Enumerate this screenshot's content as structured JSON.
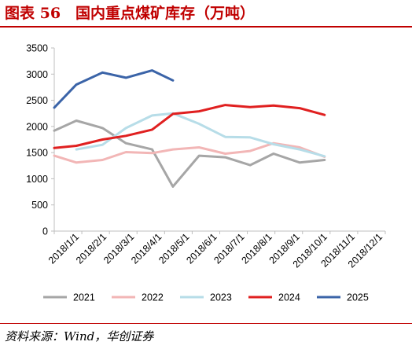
{
  "title": "图表 56　国内重点煤矿库存（万吨）",
  "source": "资料来源：Wind，华创证券",
  "colors": {
    "accent": "#c00000",
    "axis": "#bfbfbf"
  },
  "chart_data": {
    "type": "line",
    "title": "",
    "xlabel": "",
    "ylabel": "",
    "categories": [
      "2018/1/1",
      "2018/2/1",
      "2018/3/1",
      "2018/4/1",
      "2018/5/1",
      "2018/6/1",
      "2018/7/1",
      "2018/8/1",
      "2018/9/1",
      "2018/10/1",
      "2018/11/1",
      "2018/12/1"
    ],
    "ylim": [
      0,
      3500
    ],
    "yticks": [
      0,
      500,
      1000,
      1500,
      2000,
      2500,
      3000,
      3500
    ],
    "grid": false,
    "legend_position": "bottom",
    "series": [
      {
        "name": "2021",
        "color": "#a6a6a6",
        "points": [
          {
            "x": 0.0,
            "y": 1920
          },
          {
            "x": 0.8,
            "y": 2110
          },
          {
            "x": 1.75,
            "y": 1970
          },
          {
            "x": 2.6,
            "y": 1680
          },
          {
            "x": 3.55,
            "y": 1560
          },
          {
            "x": 4.3,
            "y": 850
          },
          {
            "x": 5.25,
            "y": 1440
          },
          {
            "x": 6.2,
            "y": 1410
          },
          {
            "x": 7.1,
            "y": 1260
          },
          {
            "x": 7.95,
            "y": 1480
          },
          {
            "x": 8.9,
            "y": 1310
          },
          {
            "x": 9.8,
            "y": 1360
          }
        ]
      },
      {
        "name": "2022",
        "color": "#f2b6b6",
        "points": [
          {
            "x": 0.0,
            "y": 1440
          },
          {
            "x": 0.8,
            "y": 1310
          },
          {
            "x": 1.75,
            "y": 1360
          },
          {
            "x": 2.6,
            "y": 1510
          },
          {
            "x": 3.55,
            "y": 1490
          },
          {
            "x": 4.3,
            "y": 1560
          },
          {
            "x": 5.25,
            "y": 1600
          },
          {
            "x": 6.2,
            "y": 1480
          },
          {
            "x": 7.1,
            "y": 1530
          },
          {
            "x": 7.95,
            "y": 1680
          },
          {
            "x": 8.9,
            "y": 1600
          },
          {
            "x": 9.8,
            "y": 1420
          }
        ]
      },
      {
        "name": "2023",
        "color": "#b7dde8",
        "points": [
          {
            "x": 0.8,
            "y": 1560
          },
          {
            "x": 1.75,
            "y": 1650
          },
          {
            "x": 2.6,
            "y": 1970
          },
          {
            "x": 3.55,
            "y": 2210
          },
          {
            "x": 4.3,
            "y": 2250
          },
          {
            "x": 5.25,
            "y": 2050
          },
          {
            "x": 6.2,
            "y": 1800
          },
          {
            "x": 7.1,
            "y": 1790
          },
          {
            "x": 7.95,
            "y": 1660
          },
          {
            "x": 8.9,
            "y": 1560
          },
          {
            "x": 9.8,
            "y": 1430
          }
        ]
      },
      {
        "name": "2024",
        "color": "#e02020",
        "points": [
          {
            "x": 0.0,
            "y": 1590
          },
          {
            "x": 0.8,
            "y": 1630
          },
          {
            "x": 1.75,
            "y": 1750
          },
          {
            "x": 2.6,
            "y": 1820
          },
          {
            "x": 3.55,
            "y": 1940
          },
          {
            "x": 4.3,
            "y": 2240
          },
          {
            "x": 5.25,
            "y": 2290
          },
          {
            "x": 6.2,
            "y": 2410
          },
          {
            "x": 7.1,
            "y": 2370
          },
          {
            "x": 7.95,
            "y": 2400
          },
          {
            "x": 8.9,
            "y": 2350
          },
          {
            "x": 9.8,
            "y": 2220
          }
        ]
      },
      {
        "name": "2025",
        "color": "#3b64a8",
        "points": [
          {
            "x": 0.0,
            "y": 2360
          },
          {
            "x": 0.8,
            "y": 2800
          },
          {
            "x": 1.75,
            "y": 3030
          },
          {
            "x": 2.6,
            "y": 2930
          },
          {
            "x": 3.55,
            "y": 3070
          },
          {
            "x": 4.3,
            "y": 2880
          }
        ]
      }
    ]
  }
}
